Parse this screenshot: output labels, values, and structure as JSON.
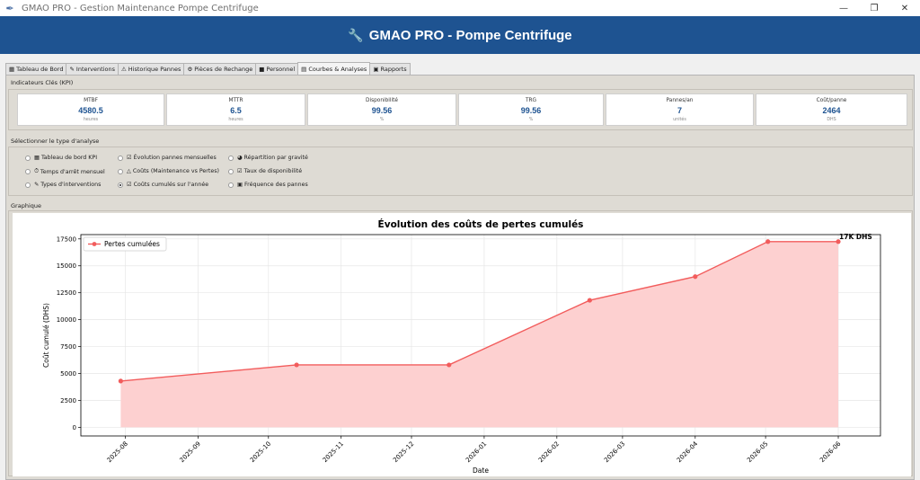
{
  "window": {
    "title": "GMAO PRO - Gestion Maintenance Pompe Centrifuge",
    "minimize": "—",
    "maximize": "❐",
    "close": "✕"
  },
  "header": {
    "icon": "wrench-icon",
    "title": "GMAO PRO - Pompe Centrifuge"
  },
  "tabs": [
    {
      "label": "Tableau de Bord",
      "icon": "chart-icon",
      "glyph": "▦"
    },
    {
      "label": "Interventions",
      "icon": "wrench-icon",
      "glyph": "✎"
    },
    {
      "label": "Historique Pannes",
      "icon": "warning-icon",
      "glyph": "⚠"
    },
    {
      "label": "Pièces de Rechange",
      "icon": "gear-icon",
      "glyph": "⚙"
    },
    {
      "label": "Personnel",
      "icon": "people-icon",
      "glyph": "■"
    },
    {
      "label": "Courbes & Analyses",
      "icon": "graph-icon",
      "glyph": "▤",
      "active": true
    },
    {
      "label": "Rapports",
      "icon": "report-icon",
      "glyph": "▣"
    }
  ],
  "kpi": {
    "section_label": "Indicateurs Clés (KPI)",
    "cards": [
      {
        "name": "MTBF",
        "value": "4580.5",
        "unit": "heures"
      },
      {
        "name": "MTTR",
        "value": "6.5",
        "unit": "heures"
      },
      {
        "name": "Disponibilité",
        "value": "99.56",
        "unit": "%"
      },
      {
        "name": "TRG",
        "value": "99.56",
        "unit": "%"
      },
      {
        "name": "Pannes/an",
        "value": "7",
        "unit": "unités"
      },
      {
        "name": "Coût/panne",
        "value": "2464",
        "unit": "DHS"
      }
    ]
  },
  "analysis": {
    "section_label": "Sélectionner le type d'analyse",
    "options": [
      {
        "label": "Tableau de bord KPI",
        "glyph": "▦",
        "selected": false
      },
      {
        "label": "Évolution pannes mensuelles",
        "glyph": "☑",
        "selected": false
      },
      {
        "label": "Répartition par gravité",
        "glyph": "◕",
        "selected": false
      },
      {
        "label": "Temps d'arrêt mensuel",
        "glyph": "⏱",
        "selected": false
      },
      {
        "label": "Coûts (Maintenance vs Pertes)",
        "glyph": "△",
        "selected": false
      },
      {
        "label": "Taux de disponibilité",
        "glyph": "☑",
        "selected": false
      },
      {
        "label": "Types d'interventions",
        "glyph": "✎",
        "selected": false
      },
      {
        "label": "Coûts cumulés sur l'année",
        "glyph": "☑",
        "selected": true
      },
      {
        "label": "Fréquence des pannes",
        "glyph": "▣",
        "selected": false
      }
    ]
  },
  "graph": {
    "section_label": "Graphique"
  },
  "chart_data": {
    "type": "area",
    "title": "Évolution des coûts de pertes cumulés",
    "xlabel": "Date",
    "ylabel": "Coût cumulé (DHS)",
    "ylim": [
      -800,
      17900
    ],
    "yticks": [
      0,
      2500,
      5000,
      7500,
      10000,
      12500,
      15000,
      17500
    ],
    "ytick_labels": [
      "0",
      "2500",
      "5000",
      "7500",
      "10000",
      "12500",
      "15000",
      "17500"
    ],
    "xticks": [
      "2025-08",
      "2025-09",
      "2025-10",
      "2025-11",
      "2025-12",
      "2026-01",
      "2026-02",
      "2026-03",
      "2026-04",
      "2026-05",
      "2026-06"
    ],
    "xlim": [
      "2025-07-13",
      "2026-06-19"
    ],
    "grid": true,
    "legend_position": "top-left",
    "annotation": "17K DHS",
    "series": [
      {
        "name": "Pertes cumulées",
        "color": "#f25c5c",
        "fill_color": "#fdd0d0",
        "points": [
          {
            "x": "2025-07-30",
            "y": 4300
          },
          {
            "x": "2025-10-13",
            "y": 5800
          },
          {
            "x": "2025-12-17",
            "y": 5800
          },
          {
            "x": "2026-02-15",
            "y": 11800
          },
          {
            "x": "2026-04-01",
            "y": 14000
          },
          {
            "x": "2026-05-02",
            "y": 17250
          },
          {
            "x": "2026-06-01",
            "y": 17250
          }
        ]
      }
    ]
  }
}
